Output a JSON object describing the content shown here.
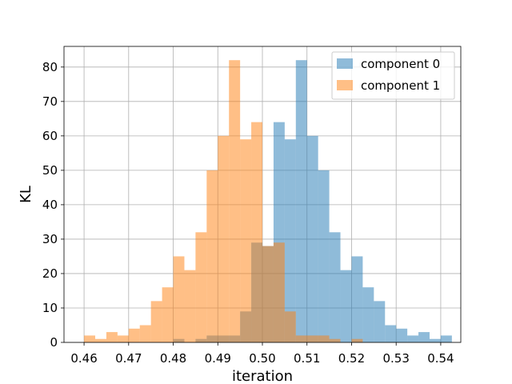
{
  "chart_data": {
    "type": "bar",
    "xlabel": "iteration",
    "ylabel": "KL",
    "xlim": [
      0.4555,
      0.5445
    ],
    "ylim": [
      0,
      86
    ],
    "xticks": [
      "0.46",
      "0.47",
      "0.48",
      "0.49",
      "0.50",
      "0.51",
      "0.52",
      "0.53",
      "0.54"
    ],
    "yticks": [
      "0",
      "10",
      "20",
      "30",
      "40",
      "50",
      "60",
      "70",
      "80"
    ],
    "grid": true,
    "legend_position": "top-right",
    "bin_width": 0.0025,
    "series": [
      {
        "name": "component 0",
        "color": "#1f77b4",
        "opacity": 0.5,
        "bins": [
          [
            0.48,
            1
          ],
          [
            0.485,
            1
          ],
          [
            0.4875,
            2
          ],
          [
            0.49,
            2
          ],
          [
            0.4925,
            2
          ],
          [
            0.495,
            9
          ],
          [
            0.4975,
            29
          ],
          [
            0.5,
            28
          ],
          [
            0.5025,
            64
          ],
          [
            0.505,
            59
          ],
          [
            0.5075,
            82
          ],
          [
            0.51,
            60
          ],
          [
            0.5125,
            50
          ],
          [
            0.515,
            32
          ],
          [
            0.5175,
            21
          ],
          [
            0.52,
            25
          ],
          [
            0.5225,
            16
          ],
          [
            0.525,
            12
          ],
          [
            0.5275,
            5
          ],
          [
            0.53,
            4
          ],
          [
            0.5325,
            2
          ],
          [
            0.535,
            3
          ],
          [
            0.5375,
            1
          ],
          [
            0.54,
            2
          ]
        ]
      },
      {
        "name": "component 1",
        "color": "#ff7f0e",
        "opacity": 0.5,
        "bins": [
          [
            0.46,
            2
          ],
          [
            0.4625,
            1
          ],
          [
            0.465,
            3
          ],
          [
            0.4675,
            2
          ],
          [
            0.47,
            4
          ],
          [
            0.4725,
            5
          ],
          [
            0.475,
            12
          ],
          [
            0.4775,
            16
          ],
          [
            0.48,
            25
          ],
          [
            0.4825,
            21
          ],
          [
            0.485,
            32
          ],
          [
            0.4875,
            50
          ],
          [
            0.49,
            60
          ],
          [
            0.4925,
            82
          ],
          [
            0.495,
            59
          ],
          [
            0.4975,
            64
          ],
          [
            0.5,
            28
          ],
          [
            0.5025,
            29
          ],
          [
            0.505,
            9
          ],
          [
            0.5075,
            2
          ],
          [
            0.51,
            2
          ],
          [
            0.5125,
            2
          ],
          [
            0.515,
            1
          ],
          [
            0.52,
            1
          ]
        ]
      }
    ]
  }
}
